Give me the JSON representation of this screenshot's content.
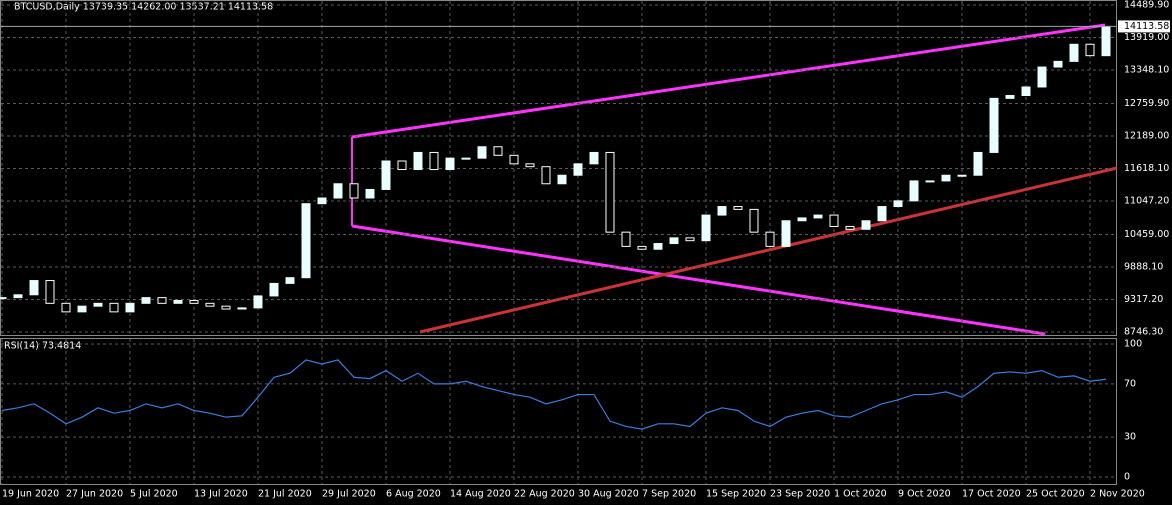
{
  "chart_data": [
    {
      "type": "candlestick",
      "title": "BTCUSD,Daily  13739.35 14262.00 13537.21 14113.58",
      "categories": [
        "19 Jun 2020",
        null,
        null,
        null,
        "27 Jun 2020",
        null,
        null,
        null,
        "5 Jul 2020",
        null,
        null,
        null,
        "13 Jul 2020",
        null,
        null,
        null,
        "21 Jul 2020",
        null,
        null,
        null,
        "29 Jul 2020",
        null,
        null,
        null,
        "6 Aug 2020",
        null,
        null,
        null,
        "14 Aug 2020",
        null,
        null,
        null,
        "22 Aug 2020",
        null,
        null,
        null,
        "30 Aug 2020",
        null,
        null,
        null,
        "7 Sep 2020",
        null,
        null,
        null,
        "15 Sep 2020",
        null,
        null,
        null,
        "23 Sep 2020",
        null,
        null,
        null,
        "1 Oct 2020",
        null,
        null,
        null,
        "9 Oct 2020",
        null,
        null,
        null,
        "17 Oct 2020",
        null,
        null,
        null,
        "25 Oct 2020",
        null,
        null,
        null,
        "2 Nov 2020",
        null
      ],
      "values": [
        9350,
        9400,
        9650,
        9250,
        9100,
        9200,
        9250,
        9100,
        9250,
        9350,
        9250,
        9300,
        9250,
        9200,
        9150,
        9170,
        9380,
        9600,
        9700,
        11000,
        11100,
        11350,
        11100,
        11250,
        11750,
        11600,
        11900,
        11600,
        11800,
        11800,
        12000,
        11850,
        11700,
        11650,
        11350,
        11500,
        11700,
        11900,
        10500,
        10250,
        10200,
        10300,
        10400,
        10350,
        10800,
        10950,
        10900,
        10500,
        10250,
        10700,
        10750,
        10800,
        10600,
        10550,
        10700,
        10950,
        11050,
        11400,
        11400,
        11500,
        11500,
        11900,
        12850,
        12900,
        13050,
        13400,
        13500,
        13800,
        13600,
        14113.58
      ],
      "ylim": [
        8746.3,
        14489.9
      ],
      "yticks": [
        {
          "value": 14489.9,
          "label": "14489.90"
        },
        {
          "value": 13919,
          "label": "13919.00"
        },
        {
          "value": 13348.1,
          "label": "13348.10"
        },
        {
          "value": 12759.9,
          "label": "12759.90"
        },
        {
          "value": 12189,
          "label": "12189.00"
        },
        {
          "value": 11618.1,
          "label": "11618.10"
        },
        {
          "value": 11047.2,
          "label": "11047.20"
        },
        {
          "value": 10459,
          "label": "10459.00"
        },
        {
          "value": 9888.1,
          "label": "9888.10"
        },
        {
          "value": 9317.2,
          "label": "9317.20"
        },
        {
          "value": 8746.3,
          "label": "8746.30"
        }
      ],
      "grid": true
    },
    {
      "type": "line",
      "title": "RSI(14) 73.4814",
      "color": "#3b7ddd",
      "values": [
        50,
        52,
        55,
        48,
        40,
        45,
        52,
        48,
        50,
        55,
        52,
        55,
        50,
        48,
        45,
        46,
        60,
        75,
        78,
        88,
        85,
        88,
        75,
        74,
        80,
        72,
        78,
        70,
        70,
        72,
        68,
        65,
        62,
        60,
        55,
        58,
        62,
        62,
        42,
        38,
        36,
        40,
        40,
        38,
        48,
        52,
        50,
        42,
        38,
        45,
        48,
        50,
        46,
        45,
        50,
        55,
        58,
        62,
        62,
        64,
        60,
        68,
        78,
        79,
        78,
        80,
        75,
        76,
        72,
        73.4814
      ],
      "ylim": [
        0,
        100
      ],
      "yticks": [
        100,
        70,
        30,
        0
      ],
      "grid": true
    }
  ]
}
